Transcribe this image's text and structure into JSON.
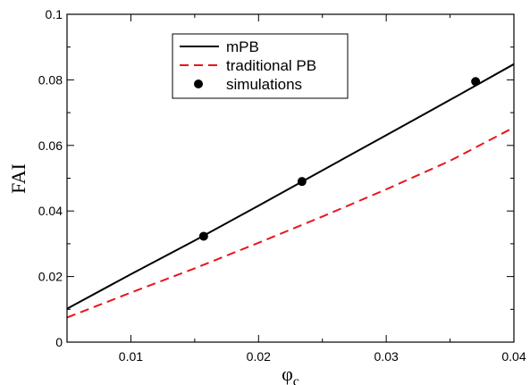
{
  "chart_data": {
    "type": "line",
    "xlabel": "φ",
    "xlabel_sub": "c",
    "ylabel": "FAI",
    "xlim": [
      0.005,
      0.04
    ],
    "ylim": [
      0,
      0.1
    ],
    "x_ticks": [
      0.01,
      0.02,
      0.03,
      0.04
    ],
    "x_tick_labels": [
      "0.01",
      "0.02",
      "0.03",
      "0.04"
    ],
    "y_ticks": [
      0,
      0.02,
      0.04,
      0.06,
      0.08,
      0.1
    ],
    "y_tick_labels": [
      "0",
      "0.02",
      "0.04",
      "0.06",
      "0.08",
      "0.1"
    ],
    "grid": false,
    "legend_position": "top-center",
    "series": [
      {
        "name": "mPB",
        "kind": "line",
        "style": "solid",
        "color": "#000000",
        "x": [
          0.005,
          0.01,
          0.015,
          0.02,
          0.025,
          0.03,
          0.035,
          0.04
        ],
        "y": [
          0.0102,
          0.0207,
          0.031,
          0.0416,
          0.0524,
          0.0631,
          0.0739,
          0.0848
        ]
      },
      {
        "name": "traditional PB",
        "kind": "line",
        "style": "dashed",
        "color": "#e8151b",
        "x": [
          0.005,
          0.01,
          0.015,
          0.02,
          0.025,
          0.03,
          0.035,
          0.04
        ],
        "y": [
          0.0075,
          0.0151,
          0.0225,
          0.0303,
          0.0383,
          0.0466,
          0.0553,
          0.0655
        ]
      },
      {
        "name": "simulations",
        "kind": "scatter",
        "color": "#000000",
        "x": [
          0.0157,
          0.0234,
          0.037
        ],
        "y": [
          0.0323,
          0.049,
          0.0795
        ]
      }
    ]
  }
}
